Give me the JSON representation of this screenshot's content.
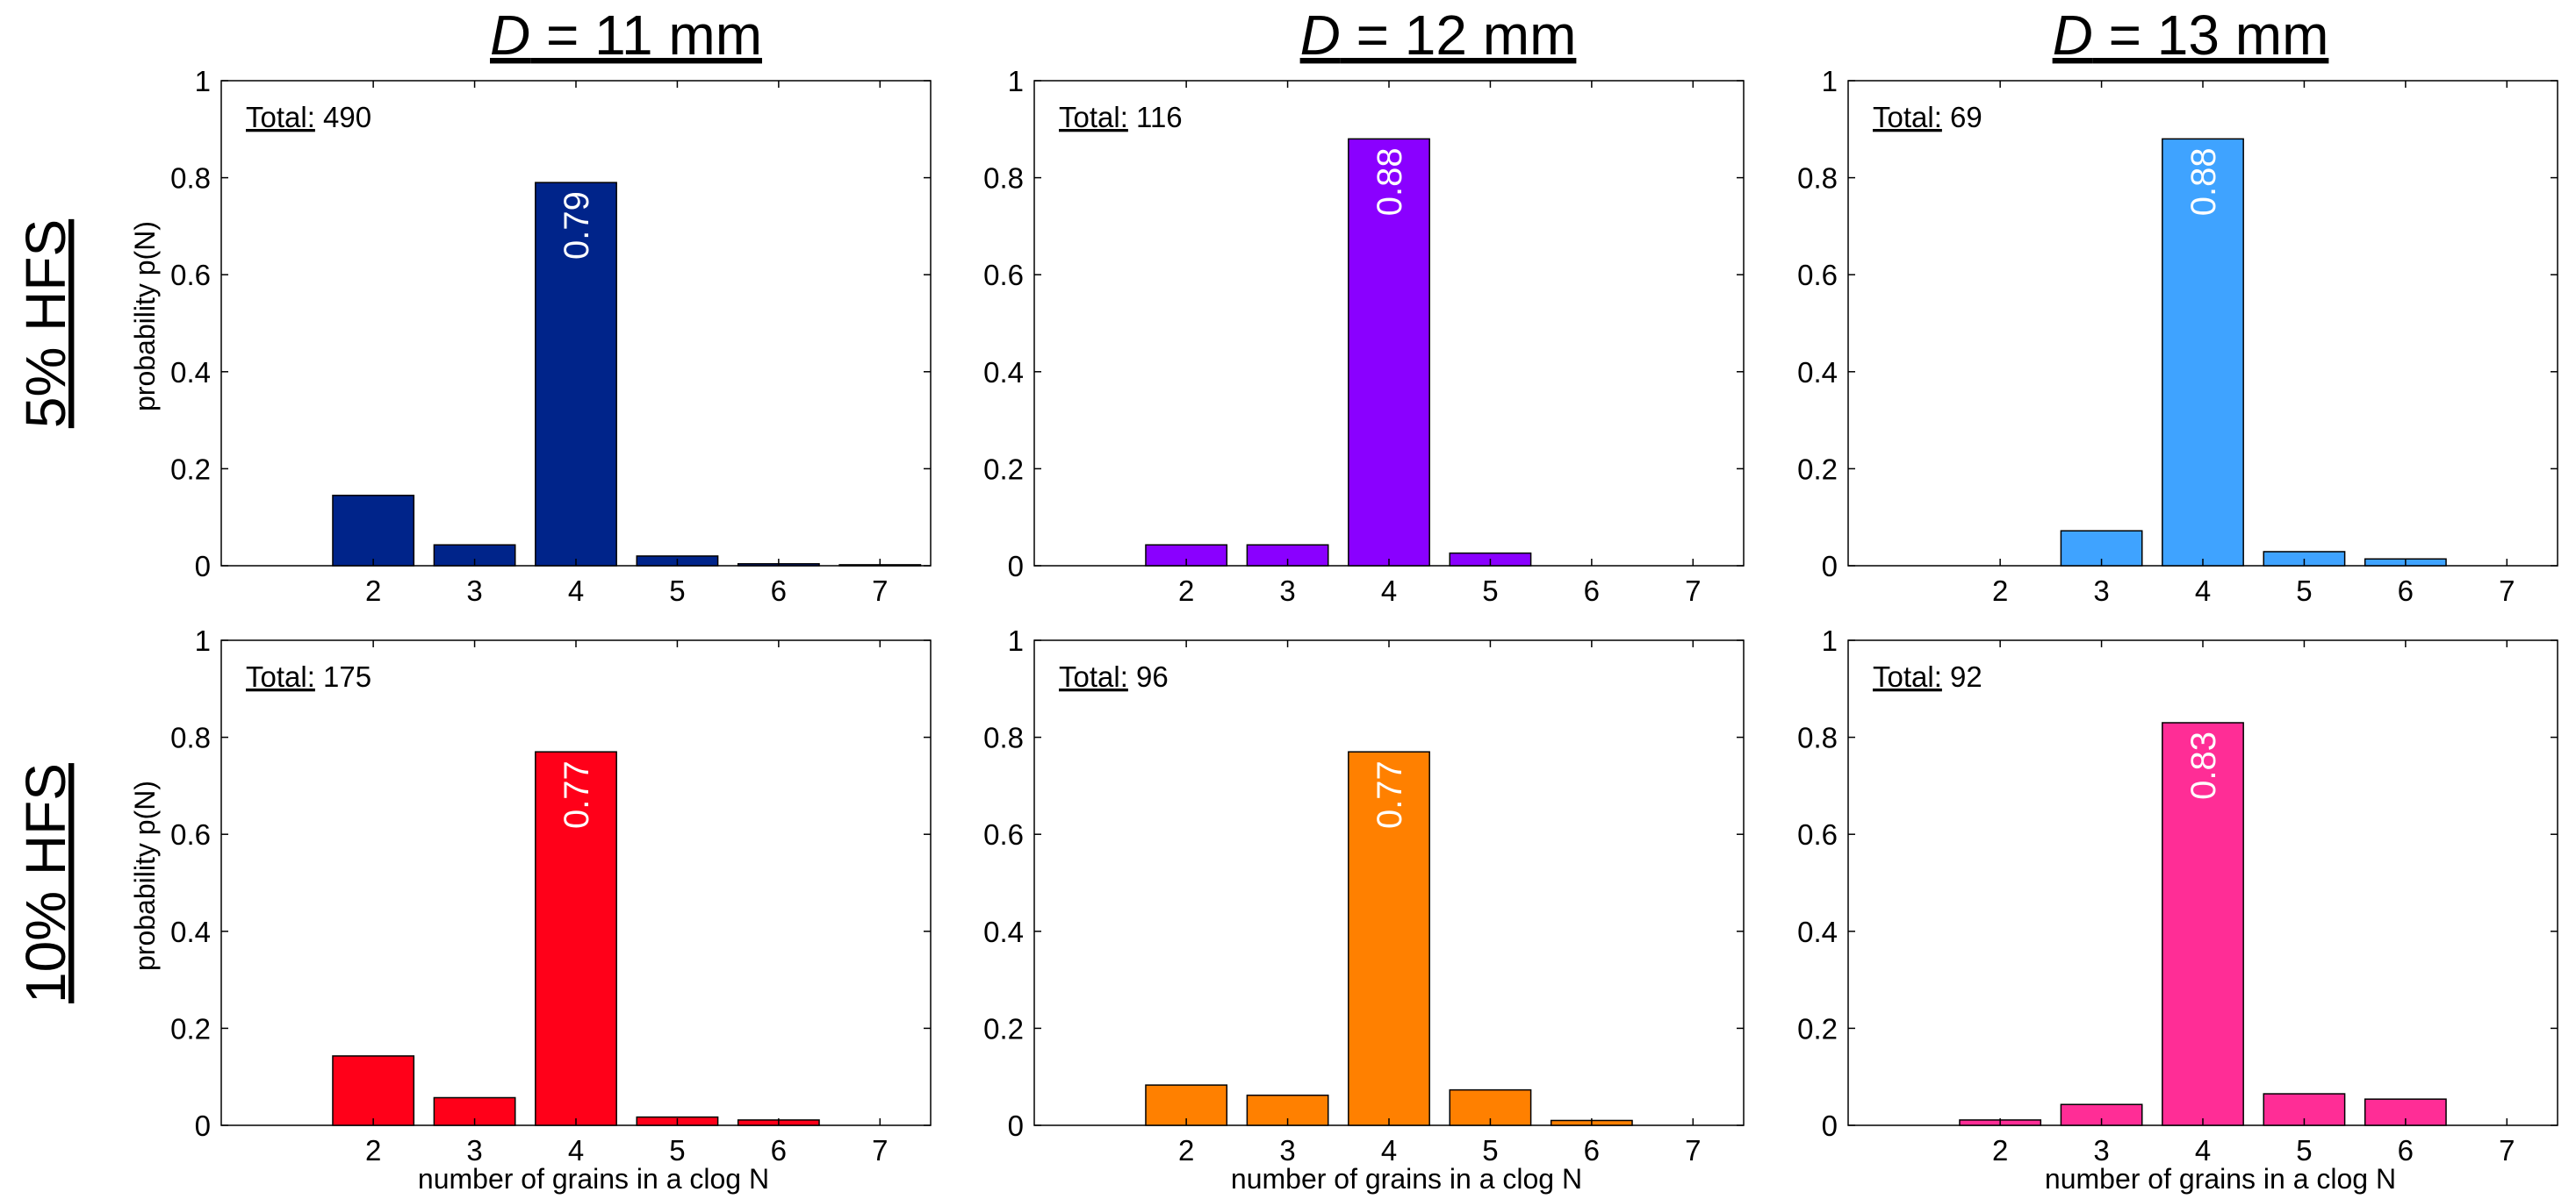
{
  "figure": {
    "columns": [
      {
        "prefix": "D",
        "rest": " = 11 mm"
      },
      {
        "prefix": "D",
        "rest": " = 12 mm"
      },
      {
        "prefix": "D",
        "rest": " = 13 mm"
      }
    ],
    "rows": [
      "5% HFS",
      "10% HFS"
    ],
    "ylabel": "probability p(N)",
    "xlabel": "number of grains in a clog N",
    "total_label": "Total:"
  },
  "chart_data": [
    {
      "type": "bar",
      "row": 0,
      "col": 0,
      "categories": [
        "2",
        "3",
        "4",
        "5",
        "6",
        "7"
      ],
      "values": [
        0.145,
        0.043,
        0.79,
        0.02,
        0.004,
        0.002
      ],
      "color": "#00248a",
      "total": "490",
      "peak_label": "0.79",
      "ylim": [
        0,
        1
      ],
      "yticks": [
        "0",
        "0.2",
        "0.4",
        "0.6",
        "0.8",
        "1"
      ],
      "xlim": [
        -0.5,
        6.5
      ]
    },
    {
      "type": "bar",
      "row": 0,
      "col": 1,
      "categories": [
        "2",
        "3",
        "4",
        "5",
        "6",
        "7"
      ],
      "values": [
        0.043,
        0.043,
        0.88,
        0.026,
        0.0,
        0.0
      ],
      "color": "#8a00ff",
      "total": "116",
      "peak_label": "0.88",
      "ylim": [
        0,
        1
      ],
      "yticks": [
        "0",
        "0.2",
        "0.4",
        "0.6",
        "0.8",
        "1"
      ],
      "xlim": [
        -0.5,
        6.5
      ]
    },
    {
      "type": "bar",
      "row": 0,
      "col": 2,
      "categories": [
        "2",
        "3",
        "4",
        "5",
        "6",
        "7"
      ],
      "values": [
        0.0,
        0.072,
        0.88,
        0.029,
        0.014,
        0.0
      ],
      "color": "#3fa3ff",
      "total": "69",
      "peak_label": "0.88",
      "ylim": [
        0,
        1
      ],
      "yticks": [
        "0",
        "0.2",
        "0.4",
        "0.6",
        "0.8",
        "1"
      ],
      "xlim": [
        -0.5,
        6.5
      ]
    },
    {
      "type": "bar",
      "row": 1,
      "col": 0,
      "categories": [
        "2",
        "3",
        "4",
        "5",
        "6",
        "7"
      ],
      "values": [
        0.143,
        0.057,
        0.77,
        0.017,
        0.011,
        0.0
      ],
      "color": "#ff0019",
      "total": "175",
      "peak_label": "0.77",
      "ylim": [
        0,
        1
      ],
      "yticks": [
        "0",
        "0.2",
        "0.4",
        "0.6",
        "0.8",
        "1"
      ],
      "xlim": [
        -0.5,
        6.5
      ]
    },
    {
      "type": "bar",
      "row": 1,
      "col": 1,
      "categories": [
        "2",
        "3",
        "4",
        "5",
        "6",
        "7"
      ],
      "values": [
        0.083,
        0.062,
        0.77,
        0.073,
        0.01,
        0.0
      ],
      "color": "#ff8000",
      "total": "96",
      "peak_label": "0.77",
      "ylim": [
        0,
        1
      ],
      "yticks": [
        "0",
        "0.2",
        "0.4",
        "0.6",
        "0.8",
        "1"
      ],
      "xlim": [
        -0.5,
        6.5
      ]
    },
    {
      "type": "bar",
      "row": 1,
      "col": 2,
      "categories": [
        "2",
        "3",
        "4",
        "5",
        "6",
        "7"
      ],
      "values": [
        0.011,
        0.043,
        0.83,
        0.065,
        0.054,
        0.0
      ],
      "color": "#ff2d96",
      "total": "92",
      "peak_label": "0.83",
      "ylim": [
        0,
        1
      ],
      "yticks": [
        "0",
        "0.2",
        "0.4",
        "0.6",
        "0.8",
        "1"
      ],
      "xlim": [
        -0.5,
        6.5
      ]
    }
  ]
}
